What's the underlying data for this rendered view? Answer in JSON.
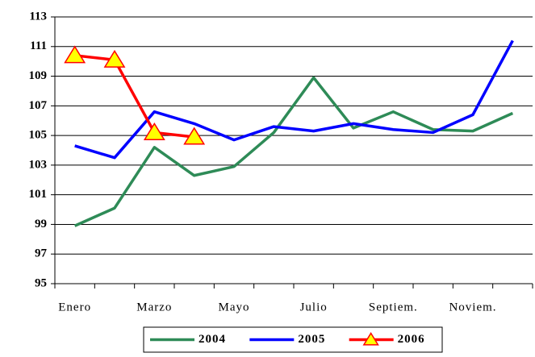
{
  "chart_data": {
    "type": "line",
    "categories": [
      "Enero",
      null,
      "Marzo",
      null,
      "Mayo",
      null,
      "Julio",
      null,
      "Septiem.",
      null,
      "Noviem.",
      null
    ],
    "series": [
      {
        "name": "2004",
        "color": "#2e8b57",
        "values": [
          98.9,
          100.1,
          104.2,
          102.3,
          102.9,
          105.2,
          108.9,
          105.5,
          106.6,
          105.4,
          105.3,
          106.5
        ]
      },
      {
        "name": "2005",
        "color": "#0000ff",
        "values": [
          104.3,
          103.5,
          106.6,
          105.8,
          104.7,
          105.6,
          105.3,
          105.8,
          105.4,
          105.2,
          106.4,
          111.4
        ]
      },
      {
        "name": "2006",
        "color": "#ff0000",
        "marker": "triangle",
        "marker_fill": "#ffff00",
        "values": [
          110.4,
          110.1,
          105.2,
          104.9,
          null,
          null,
          null,
          null,
          null,
          null,
          null,
          null
        ]
      }
    ],
    "ylim": [
      95,
      113
    ],
    "yticks": [
      95,
      97,
      99,
      101,
      103,
      105,
      107,
      109,
      111,
      113
    ],
    "grid": true,
    "legend": "bottom"
  }
}
